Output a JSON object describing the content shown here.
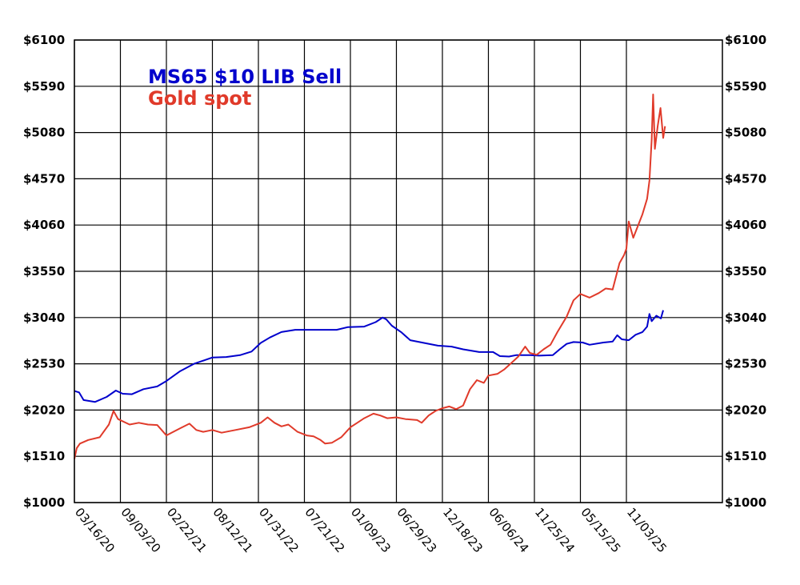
{
  "chart_data": {
    "type": "line",
    "title": "",
    "xlabel": "",
    "ylabel": "",
    "ylim": [
      1000,
      6100
    ],
    "y_ticks": [
      "$1000",
      "$1510",
      "$2020",
      "$2530",
      "$3040",
      "$3550",
      "$4060",
      "$4570",
      "$5080",
      "$5590",
      "$6100"
    ],
    "x_ticks": [
      "03/16/20",
      "09/03/20",
      "02/22/21",
      "08/12/21",
      "01/31/22",
      "07/21/22",
      "01/09/23",
      "06/29/23",
      "12/18/23",
      "06/06/24",
      "11/25/24",
      "05/15/25",
      "11/03/25"
    ],
    "grid": true,
    "legend_position": "top-left",
    "series": [
      {
        "name": "MS65 $10 LIB Sell",
        "color": "#0000cc",
        "points": [
          [
            0,
            2230
          ],
          [
            0.1,
            2215
          ],
          [
            0.2,
            2130
          ],
          [
            0.45,
            2110
          ],
          [
            0.7,
            2165
          ],
          [
            0.9,
            2235
          ],
          [
            1.05,
            2200
          ],
          [
            1.25,
            2195
          ],
          [
            1.5,
            2250
          ],
          [
            1.8,
            2280
          ],
          [
            2.0,
            2340
          ],
          [
            2.3,
            2450
          ],
          [
            2.6,
            2530
          ],
          [
            3.0,
            2600
          ],
          [
            3.3,
            2605
          ],
          [
            3.6,
            2625
          ],
          [
            3.85,
            2665
          ],
          [
            4.05,
            2760
          ],
          [
            4.25,
            2820
          ],
          [
            4.5,
            2880
          ],
          [
            4.8,
            2905
          ],
          [
            5.2,
            2905
          ],
          [
            5.7,
            2905
          ],
          [
            5.95,
            2935
          ],
          [
            6.3,
            2940
          ],
          [
            6.55,
            2990
          ],
          [
            6.7,
            3040
          ],
          [
            6.78,
            3020
          ],
          [
            6.9,
            2950
          ],
          [
            7.1,
            2880
          ],
          [
            7.3,
            2790
          ],
          [
            7.6,
            2760
          ],
          [
            7.9,
            2730
          ],
          [
            8.2,
            2720
          ],
          [
            8.45,
            2690
          ],
          [
            8.8,
            2660
          ],
          [
            9.1,
            2660
          ],
          [
            9.25,
            2615
          ],
          [
            9.45,
            2610
          ],
          [
            9.6,
            2625
          ],
          [
            9.9,
            2625
          ],
          [
            10.1,
            2620
          ],
          [
            10.4,
            2625
          ],
          [
            10.55,
            2690
          ],
          [
            10.7,
            2750
          ],
          [
            10.85,
            2770
          ],
          [
            11.05,
            2765
          ],
          [
            11.2,
            2740
          ],
          [
            11.5,
            2765
          ],
          [
            11.7,
            2775
          ],
          [
            11.8,
            2845
          ],
          [
            11.9,
            2800
          ],
          [
            12.05,
            2790
          ],
          [
            12.2,
            2850
          ],
          [
            12.35,
            2880
          ],
          [
            12.45,
            2940
          ],
          [
            12.5,
            3080
          ],
          [
            12.55,
            3000
          ],
          [
            12.65,
            3060
          ],
          [
            12.75,
            3030
          ],
          [
            12.8,
            3120
          ]
        ]
      },
      {
        "name": "Gold spot",
        "color": "#e03a2a",
        "points": [
          [
            0,
            1480
          ],
          [
            0.05,
            1600
          ],
          [
            0.12,
            1650
          ],
          [
            0.3,
            1690
          ],
          [
            0.55,
            1720
          ],
          [
            0.75,
            1860
          ],
          [
            0.85,
            2010
          ],
          [
            0.95,
            1920
          ],
          [
            1.2,
            1860
          ],
          [
            1.4,
            1880
          ],
          [
            1.6,
            1860
          ],
          [
            1.8,
            1855
          ],
          [
            2.0,
            1740
          ],
          [
            2.15,
            1780
          ],
          [
            2.3,
            1820
          ],
          [
            2.5,
            1870
          ],
          [
            2.65,
            1800
          ],
          [
            2.8,
            1780
          ],
          [
            3.0,
            1800
          ],
          [
            3.2,
            1770
          ],
          [
            3.5,
            1800
          ],
          [
            3.8,
            1830
          ],
          [
            4.05,
            1880
          ],
          [
            4.2,
            1940
          ],
          [
            4.35,
            1880
          ],
          [
            4.5,
            1840
          ],
          [
            4.65,
            1860
          ],
          [
            4.85,
            1780
          ],
          [
            5.05,
            1740
          ],
          [
            5.2,
            1730
          ],
          [
            5.35,
            1690
          ],
          [
            5.45,
            1650
          ],
          [
            5.6,
            1660
          ],
          [
            5.8,
            1720
          ],
          [
            6.0,
            1830
          ],
          [
            6.15,
            1880
          ],
          [
            6.3,
            1930
          ],
          [
            6.5,
            1980
          ],
          [
            6.65,
            1960
          ],
          [
            6.8,
            1930
          ],
          [
            7.0,
            1940
          ],
          [
            7.2,
            1920
          ],
          [
            7.45,
            1910
          ],
          [
            7.55,
            1880
          ],
          [
            7.7,
            1960
          ],
          [
            7.85,
            2010
          ],
          [
            8.0,
            2040
          ],
          [
            8.15,
            2060
          ],
          [
            8.3,
            2030
          ],
          [
            8.45,
            2070
          ],
          [
            8.6,
            2250
          ],
          [
            8.75,
            2350
          ],
          [
            8.9,
            2320
          ],
          [
            9.0,
            2400
          ],
          [
            9.2,
            2420
          ],
          [
            9.35,
            2470
          ],
          [
            9.5,
            2540
          ],
          [
            9.65,
            2610
          ],
          [
            9.8,
            2720
          ],
          [
            9.9,
            2650
          ],
          [
            10.05,
            2630
          ],
          [
            10.2,
            2690
          ],
          [
            10.35,
            2740
          ],
          [
            10.5,
            2880
          ],
          [
            10.7,
            3050
          ],
          [
            10.85,
            3230
          ],
          [
            11.0,
            3300
          ],
          [
            11.2,
            3260
          ],
          [
            11.4,
            3310
          ],
          [
            11.55,
            3360
          ],
          [
            11.7,
            3350
          ],
          [
            11.85,
            3640
          ],
          [
            11.95,
            3730
          ],
          [
            12.0,
            3800
          ],
          [
            12.05,
            4100
          ],
          [
            12.15,
            3920
          ],
          [
            12.25,
            4050
          ],
          [
            12.35,
            4180
          ],
          [
            12.45,
            4350
          ],
          [
            12.5,
            4550
          ],
          [
            12.55,
            5000
          ],
          [
            12.58,
            5500
          ],
          [
            12.62,
            4900
          ],
          [
            12.68,
            5150
          ],
          [
            12.74,
            5350
          ],
          [
            12.8,
            5020
          ],
          [
            12.84,
            5150
          ]
        ]
      }
    ]
  }
}
